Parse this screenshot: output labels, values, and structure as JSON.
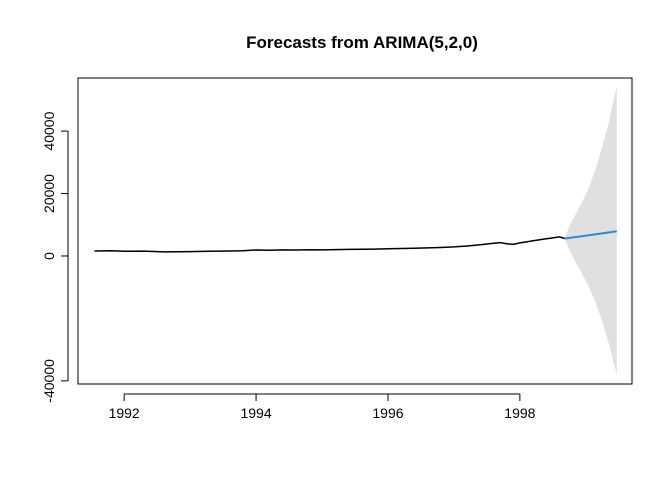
{
  "chart_data": {
    "type": "line",
    "title": "Forecasts from ARIMA(5,2,0)",
    "xlabel": "",
    "ylabel": "",
    "xlim": [
      1991.3,
      1999.7
    ],
    "ylim": [
      -41000,
      57000
    ],
    "x_ticks": [
      1992,
      1994,
      1996,
      1998
    ],
    "x_tick_labels": [
      "1992",
      "1994",
      "1996",
      "1998"
    ],
    "y_ticks": [
      -40000,
      0,
      20000,
      40000
    ],
    "y_tick_labels": [
      "-40000",
      "0",
      "20000",
      "40000"
    ],
    "grid": false,
    "series": [
      {
        "role": "history",
        "color": "#000000",
        "x": [
          1991.55,
          1991.8,
          1992.0,
          1992.3,
          1992.6,
          1992.8,
          1993.0,
          1993.3,
          1993.6,
          1993.8,
          1994.0,
          1994.2,
          1994.4,
          1994.6,
          1994.8,
          1995.0,
          1995.2,
          1995.4,
          1995.6,
          1995.8,
          1996.0,
          1996.2,
          1996.4,
          1996.6,
          1996.8,
          1997.0,
          1997.2,
          1997.4,
          1997.6,
          1997.7,
          1997.8,
          1997.9,
          1998.0,
          1998.1,
          1998.2,
          1998.3,
          1998.4,
          1998.5,
          1998.6,
          1998.68
        ],
        "values": [
          1600,
          1650,
          1500,
          1550,
          1300,
          1350,
          1400,
          1500,
          1600,
          1700,
          1900,
          1850,
          1950,
          1900,
          2000,
          1950,
          2050,
          2100,
          2150,
          2200,
          2300,
          2400,
          2500,
          2600,
          2700,
          2900,
          3200,
          3600,
          4100,
          4300,
          3900,
          3700,
          4200,
          4500,
          4900,
          5200,
          5500,
          5800,
          6100,
          5600
        ]
      },
      {
        "role": "forecast",
        "color": "#2b8cd6",
        "x": [
          1998.68,
          1998.9,
          1999.1,
          1999.3,
          1999.47
        ],
        "values": [
          5600,
          6200,
          6800,
          7400,
          7900
        ]
      }
    ],
    "interval": {
      "role": "prediction-interval",
      "color": "#e0e0e0",
      "x": [
        1998.68,
        1998.75,
        1998.85,
        1998.95,
        1999.05,
        1999.15,
        1999.25,
        1999.35,
        1999.42,
        1999.47
      ],
      "lower": [
        5600,
        2000,
        -2000,
        -6000,
        -10000,
        -15000,
        -21000,
        -28000,
        -34000,
        -38000
      ],
      "upper": [
        5600,
        9500,
        13500,
        17500,
        22000,
        28000,
        35000,
        43000,
        50000,
        54000
      ]
    }
  }
}
